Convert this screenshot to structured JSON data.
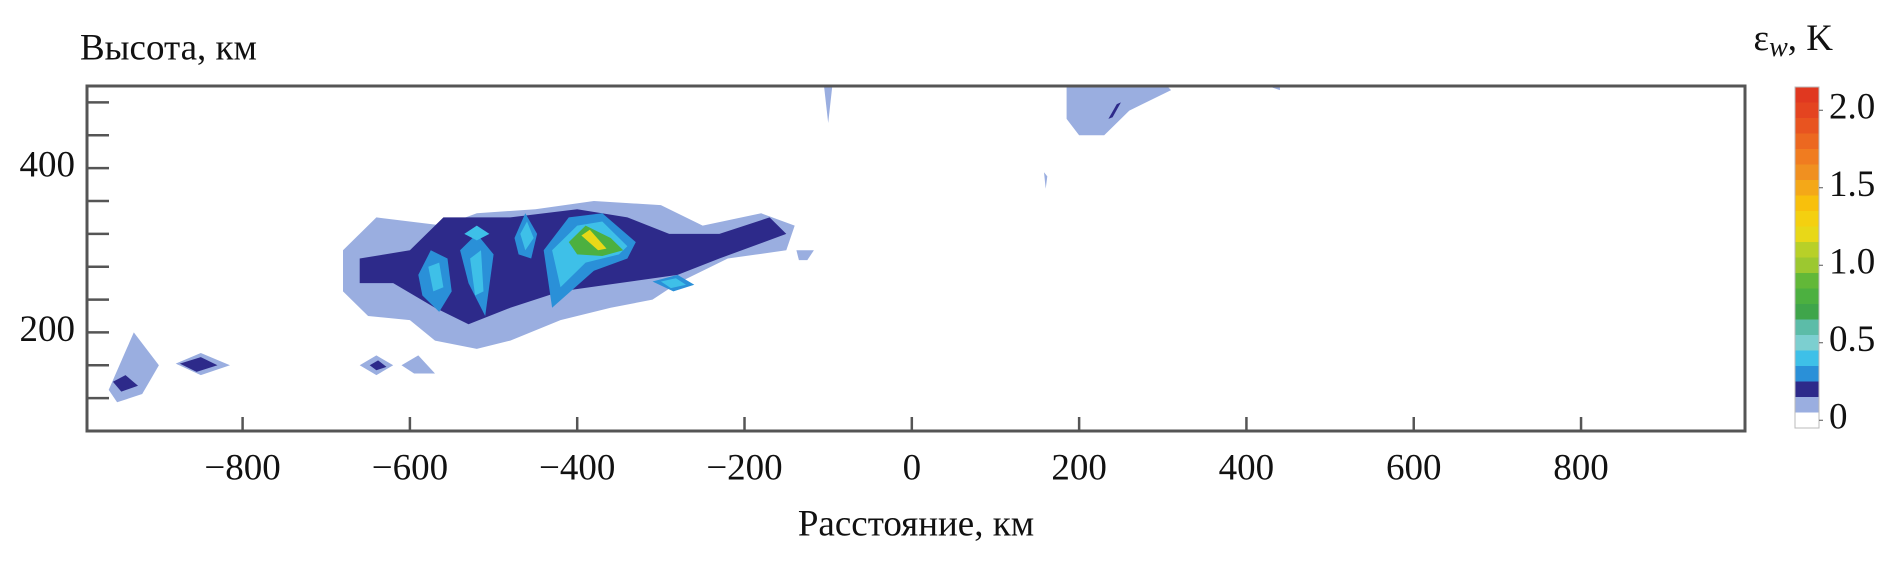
{
  "chart_data": {
    "type": "contour",
    "ylabel": "Высота, км",
    "xlabel": "Расстояние, км",
    "colorbar_label": {
      "symbol": "ε",
      "subscript": "w",
      "unit": ", K"
    },
    "xlim": [
      -986,
      996
    ],
    "ylim": [
      80,
      500
    ],
    "xticks": [
      {
        "value": -800,
        "label": "−800"
      },
      {
        "value": -600,
        "label": "−600"
      },
      {
        "value": -400,
        "label": "−400"
      },
      {
        "value": -200,
        "label": "−200"
      },
      0,
      200,
      400,
      600,
      800
    ],
    "yticks": [
      200,
      400
    ],
    "yminor": [
      120,
      160,
      240,
      280,
      320,
      360,
      440,
      480
    ],
    "clim": [
      -0.05,
      2.15
    ],
    "cticks": [
      0,
      0.5,
      {
        "value": 1.0,
        "label": "1.0"
      },
      1.5,
      {
        "value": 2.0,
        "label": "2.0"
      }
    ],
    "levels": [
      -0.05,
      0.05,
      0.15,
      0.25,
      0.35,
      0.45,
      0.55,
      0.65,
      0.75,
      0.85,
      0.95,
      1.05,
      1.15,
      1.25,
      1.35,
      1.45,
      1.55,
      1.65,
      1.75,
      1.85,
      1.95,
      2.05,
      2.15
    ],
    "colors": [
      "#ffffff",
      "#9aaee0",
      "#2d2a8a",
      "#2a90d8",
      "#3ec0e8",
      "#7ccfd0",
      "#5cbca8",
      "#3fa54a",
      "#4cb040",
      "#62b838",
      "#9cc830",
      "#b8d028",
      "#e8d818",
      "#f4d010",
      "#f8c00c",
      "#f4a818",
      "#f09020",
      "#f07c20",
      "#ec6820",
      "#e85420",
      "#e44420",
      "#e03820"
    ],
    "contours": [
      {
        "level": 0.1,
        "x": [
          -680,
          -640,
          -560,
          -520,
          -450,
          -380,
          -300,
          -250,
          -180,
          -140,
          -150,
          -220,
          -280,
          -310,
          -360,
          -420,
          -480,
          -520,
          -570,
          -600,
          -650,
          -680
        ],
        "y": [
          300,
          340,
          330,
          345,
          350,
          360,
          355,
          330,
          345,
          330,
          300,
          290,
          260,
          240,
          230,
          215,
          190,
          180,
          190,
          215,
          220,
          250
        ]
      },
      {
        "level": 0.2,
        "x": [
          -660,
          -600,
          -560,
          -480,
          -400,
          -340,
          -290,
          -230,
          -170,
          -150,
          -230,
          -280,
          -350,
          -420,
          -480,
          -530,
          -570,
          -620,
          -660
        ],
        "y": [
          290,
          300,
          340,
          340,
          350,
          340,
          320,
          320,
          340,
          320,
          290,
          270,
          260,
          250,
          230,
          210,
          230,
          260,
          260
        ]
      },
      {
        "level": 0.3,
        "x": [
          -590,
          -575,
          -555,
          -550,
          -565,
          -585
        ],
        "y": [
          270,
          300,
          290,
          250,
          225,
          245
        ]
      },
      {
        "level": 0.4,
        "x": [
          -578,
          -565,
          -560,
          -572
        ],
        "y": [
          280,
          285,
          255,
          250
        ]
      },
      {
        "level": 0.3,
        "x": [
          -540,
          -520,
          -500,
          -510,
          -530
        ],
        "y": [
          300,
          320,
          295,
          220,
          260
        ]
      },
      {
        "level": 0.4,
        "x": [
          -528,
          -515,
          -512,
          -522
        ],
        "y": [
          290,
          300,
          250,
          245
        ]
      },
      {
        "level": 0.4,
        "x": [
          -535,
          -520,
          -505,
          -520
        ],
        "y": [
          320,
          330,
          320,
          312
        ]
      },
      {
        "level": 0.3,
        "x": [
          -475,
          -462,
          -448,
          -455,
          -470
        ],
        "y": [
          315,
          345,
          320,
          290,
          295
        ]
      },
      {
        "level": 0.4,
        "x": [
          -468,
          -460,
          -452,
          -462
        ],
        "y": [
          320,
          335,
          315,
          300
        ]
      },
      {
        "level": 0.3,
        "x": [
          -440,
          -410,
          -370,
          -330,
          -340,
          -380,
          -430
        ],
        "y": [
          300,
          340,
          345,
          310,
          290,
          275,
          230
        ]
      },
      {
        "level": 0.4,
        "x": [
          -430,
          -400,
          -370,
          -340,
          -350,
          -390,
          -420
        ],
        "y": [
          300,
          330,
          335,
          305,
          295,
          285,
          255
        ]
      },
      {
        "level": 0.8,
        "x": [
          -410,
          -390,
          -360,
          -345,
          -370,
          -400
        ],
        "y": [
          310,
          330,
          315,
          300,
          293,
          295
        ]
      },
      {
        "level": 1.2,
        "x": [
          -395,
          -385,
          -365,
          -375
        ],
        "y": [
          318,
          325,
          302,
          300
        ]
      },
      {
        "level": 0.3,
        "x": [
          -310,
          -280,
          -260,
          -285
        ],
        "y": [
          262,
          270,
          258,
          250
        ]
      },
      {
        "level": 0.4,
        "x": [
          -300,
          -282,
          -270,
          -288
        ],
        "y": [
          262,
          266,
          258,
          254
        ]
      },
      {
        "level": 0.1,
        "x": [
          -960,
          -930,
          -900,
          -920,
          -950
        ],
        "y": [
          130,
          200,
          160,
          125,
          115
        ]
      },
      {
        "level": 0.2,
        "x": [
          -955,
          -940,
          -925,
          -945
        ],
        "y": [
          140,
          148,
          135,
          128
        ]
      },
      {
        "level": 0.1,
        "x": [
          -880,
          -850,
          -815,
          -850
        ],
        "y": [
          162,
          175,
          160,
          148
        ]
      },
      {
        "level": 0.2,
        "x": [
          -875,
          -850,
          -830,
          -855
        ],
        "y": [
          162,
          170,
          160,
          152
        ]
      },
      {
        "level": 0.1,
        "x": [
          -660,
          -640,
          -620,
          -640
        ],
        "y": [
          160,
          172,
          160,
          148
        ]
      },
      {
        "level": 0.1,
        "x": [
          -610,
          -590,
          -570,
          -595
        ],
        "y": [
          160,
          172,
          150,
          150
        ]
      },
      {
        "level": 0.2,
        "x": [
          -648,
          -638,
          -628,
          -640
        ],
        "y": [
          160,
          166,
          158,
          154
        ]
      },
      {
        "level": 0.1,
        "x": [
          185,
          230,
          300,
          310,
          260,
          230,
          200,
          185
        ],
        "y": [
          500,
          500,
          505,
          495,
          470,
          440,
          440,
          460
        ]
      },
      {
        "level": 0.2,
        "x": [
          235,
          245,
          250,
          240
        ],
        "y": [
          460,
          478,
          480,
          462
        ]
      },
      {
        "level": 0.1,
        "x": [
          -105,
          -95,
          -100
        ],
        "y": [
          500,
          500,
          455
        ]
      },
      {
        "level": 0.1,
        "x": [
          420,
          440,
          440
        ],
        "y": [
          502,
          502,
          495
        ]
      },
      {
        "level": 0.1,
        "x": [
          158,
          162,
          160
        ],
        "y": [
          395,
          390,
          375
        ]
      },
      {
        "level": 0.1,
        "x": [
          -138,
          -117,
          -125,
          -135
        ],
        "y": [
          300,
          300,
          288,
          288
        ]
      }
    ]
  }
}
